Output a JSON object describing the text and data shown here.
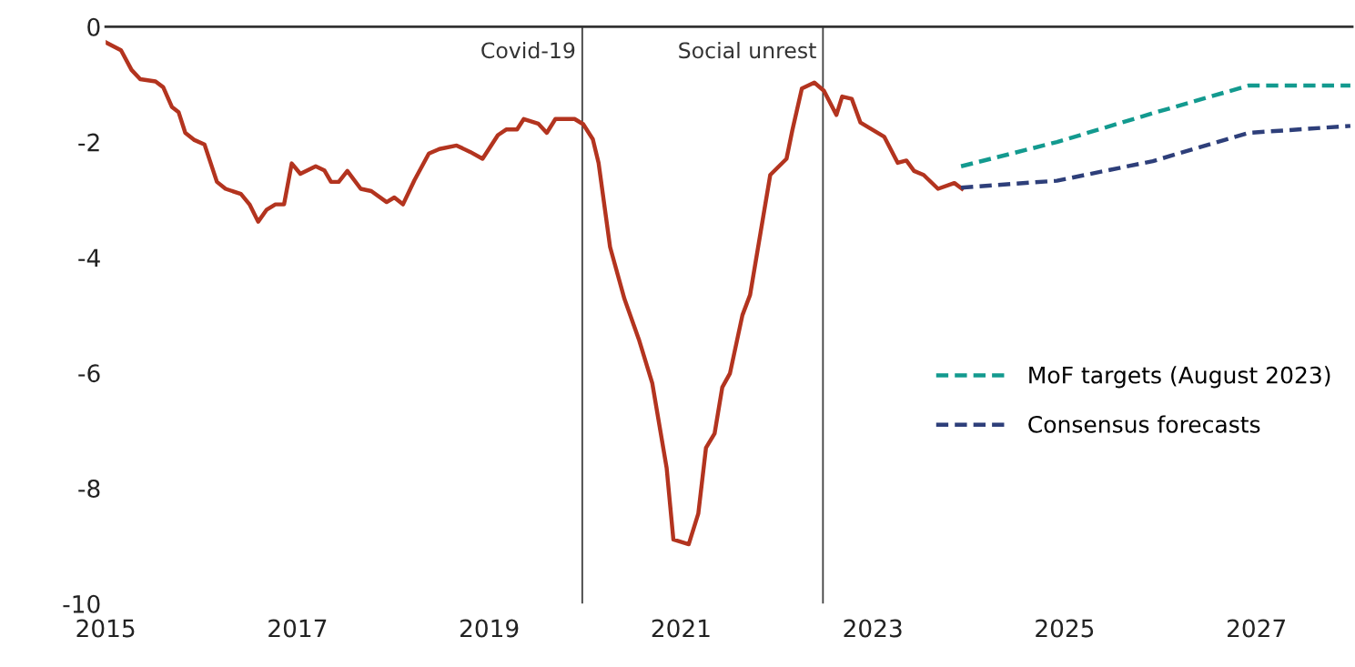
{
  "chart_data": {
    "type": "line",
    "xlim": [
      2015,
      2028
    ],
    "ylim": [
      -10,
      0
    ],
    "xticks": [
      2015,
      2017,
      2019,
      2021,
      2023,
      2025,
      2027
    ],
    "yticks": [
      0,
      -2,
      -4,
      -6,
      -8,
      -10
    ],
    "grid": false,
    "legend": "right",
    "line_style": "solid",
    "marker": "none",
    "ref_lines": [
      {
        "axis": "x",
        "value": 2019.97,
        "label": "Covid-19",
        "color": "#404040"
      },
      {
        "axis": "x",
        "value": 2022.48,
        "label": "Social unrest",
        "color": "#404040"
      }
    ],
    "series": [
      {
        "color": "#b3341f",
        "x": [
          2015.0,
          2015.16,
          2015.27,
          2015.36,
          2015.52,
          2015.6,
          2015.69,
          2015.76,
          2015.83,
          2015.92,
          2016.03,
          2016.16,
          2016.25,
          2016.41,
          2016.5,
          2016.59,
          2016.68,
          2016.77,
          2016.86,
          2016.94,
          2017.03,
          2017.19,
          2017.28,
          2017.35,
          2017.43,
          2017.52,
          2017.66,
          2017.77,
          2017.93,
          2018.01,
          2018.1,
          2018.22,
          2018.37,
          2018.48,
          2018.66,
          2018.8,
          2018.93,
          2019.09,
          2019.18,
          2019.29,
          2019.36,
          2019.51,
          2019.6,
          2019.69,
          2019.89,
          2019.98,
          2020.08,
          2020.14,
          2020.26,
          2020.41,
          2020.56,
          2020.7,
          2020.85,
          2020.92,
          2021.08,
          2021.18,
          2021.26,
          2021.35,
          2021.43,
          2021.51,
          2021.64,
          2021.72,
          2021.93,
          2022.1,
          2022.16,
          2022.26,
          2022.39,
          2022.49,
          2022.62,
          2022.68,
          2022.78,
          2022.87,
          2023.12,
          2023.26,
          2023.35,
          2023.43,
          2023.53,
          2023.68,
          2023.85,
          2023.93
        ],
        "values": [
          -0.27,
          -0.41,
          -0.75,
          -0.91,
          -0.95,
          -1.05,
          -1.39,
          -1.48,
          -1.84,
          -1.96,
          -2.04,
          -2.69,
          -2.81,
          -2.9,
          -3.08,
          -3.38,
          -3.17,
          -3.08,
          -3.08,
          -2.37,
          -2.55,
          -2.42,
          -2.49,
          -2.69,
          -2.69,
          -2.5,
          -2.81,
          -2.85,
          -3.04,
          -2.96,
          -3.08,
          -2.66,
          -2.2,
          -2.12,
          -2.06,
          -2.17,
          -2.29,
          -1.88,
          -1.78,
          -1.78,
          -1.6,
          -1.68,
          -1.84,
          -1.6,
          -1.6,
          -1.69,
          -1.95,
          -2.36,
          -3.82,
          -4.72,
          -5.42,
          -6.18,
          -7.65,
          -8.89,
          -8.97,
          -8.44,
          -7.3,
          -7.05,
          -6.25,
          -6.01,
          -5.0,
          -4.65,
          -2.57,
          -2.29,
          -1.8,
          -1.07,
          -0.97,
          -1.11,
          -1.53,
          -1.21,
          -1.25,
          -1.66,
          -1.91,
          -2.36,
          -2.32,
          -2.5,
          -2.57,
          -2.81,
          -2.71,
          -2.81
        ]
      },
      {
        "name": "MoF targets (August 2023)",
        "color": "#139a8f",
        "line_style": "dashed",
        "x": [
          2023.92,
          2024.92,
          2025.92,
          2026.92,
          2027.98
        ],
        "values": [
          -2.42,
          -2.0,
          -1.5,
          -1.02,
          -1.02
        ]
      },
      {
        "name": "Consensus forecasts",
        "color": "#2e3f7a",
        "line_style": "dashed",
        "x": [
          2023.92,
          2024.92,
          2025.92,
          2026.92,
          2027.98
        ],
        "values": [
          -2.79,
          -2.67,
          -2.33,
          -1.84,
          -1.72
        ]
      }
    ]
  }
}
